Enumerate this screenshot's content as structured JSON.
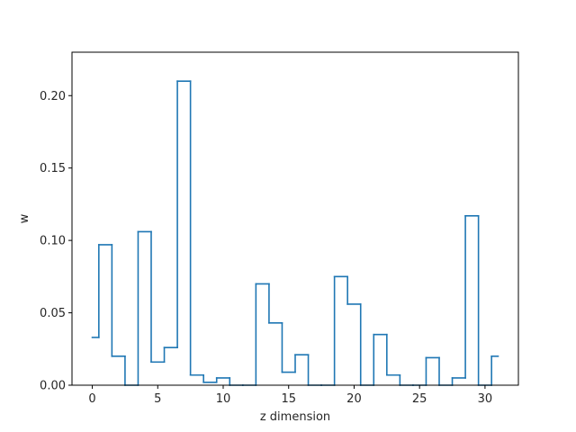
{
  "chart_data": {
    "type": "line",
    "drawstyle": "steps-mid",
    "title": "",
    "xlabel": "z dimension",
    "ylabel": "w",
    "xlim": [
      -1.55,
      32.55
    ],
    "ylim": [
      0,
      0.23
    ],
    "xticks": [
      0,
      5,
      10,
      15,
      20,
      25,
      30
    ],
    "yticks": [
      0.0,
      0.05,
      0.1,
      0.15,
      0.2
    ],
    "ytick_labels": [
      "0.00",
      "0.05",
      "0.10",
      "0.15",
      "0.20"
    ],
    "grid": false,
    "color": "#1f77b4",
    "series": [
      {
        "x": [
          0,
          1,
          2,
          3,
          4,
          5,
          6,
          7,
          8,
          9,
          10,
          11,
          12,
          13,
          14,
          15,
          16,
          17,
          18,
          19,
          20,
          21,
          22,
          23,
          24,
          25,
          26,
          27,
          28,
          29,
          30,
          31
        ],
        "values": [
          0.033,
          0.097,
          0.02,
          0.0,
          0.106,
          0.016,
          0.026,
          0.21,
          0.007,
          0.002,
          0.005,
          0.0,
          0.0,
          0.07,
          0.043,
          0.009,
          0.021,
          0.0,
          0.0,
          0.075,
          0.056,
          0.0,
          0.035,
          0.007,
          0.0,
          0.0,
          0.019,
          0.0,
          0.005,
          0.117,
          0.0,
          0.02
        ]
      }
    ]
  }
}
